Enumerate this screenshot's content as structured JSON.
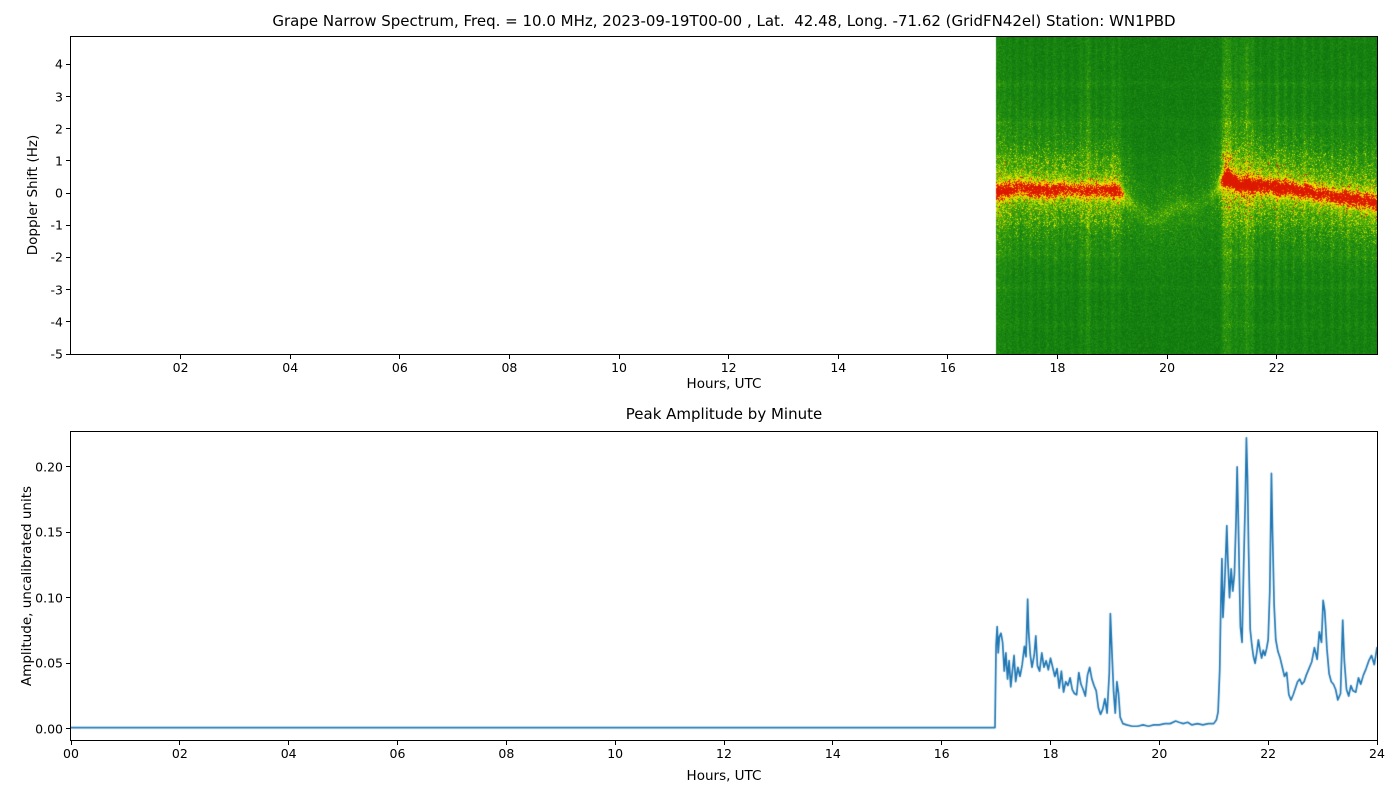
{
  "figure": {
    "background": "#ffffff",
    "text_color": "#000000"
  },
  "chart_data": [
    {
      "id": "doppler_spectrogram",
      "type": "heatmap",
      "title": "Grape Narrow Spectrum, Freq. = 10.0 MHz, 2023-09-19T00-00 , Lat.  42.48, Long. -71.62 (GridFN42el) Station: WN1PBD",
      "xlabel": "Hours, UTC",
      "ylabel": "Doppler Shift (Hz)",
      "xlim": [
        0,
        23.83
      ],
      "ylim": [
        -5,
        4.85
      ],
      "xticks": {
        "values": [
          2,
          4,
          6,
          8,
          10,
          12,
          14,
          16,
          18,
          20,
          22
        ],
        "labels": [
          "02",
          "04",
          "06",
          "08",
          "10",
          "12",
          "14",
          "16",
          "18",
          "20",
          "22"
        ]
      },
      "yticks": {
        "values": [
          4,
          3,
          2,
          1,
          0,
          -1,
          -2,
          -3,
          -4,
          -5
        ],
        "labels": [
          "4",
          "3",
          "2",
          "1",
          "0",
          "-1",
          "-2",
          "-3",
          "-4",
          "-5"
        ]
      },
      "grid": false,
      "no_data_color": "#ffffff",
      "data_start_hour": 16.87,
      "data_end_hour": 23.83,
      "noise_seed": 7,
      "colormap_stops": [
        [
          0.0,
          10,
          105,
          10
        ],
        [
          0.16,
          24,
          134,
          18
        ],
        [
          0.34,
          60,
          160,
          12
        ],
        [
          0.5,
          130,
          196,
          4
        ],
        [
          0.64,
          200,
          224,
          0
        ],
        [
          0.75,
          240,
          240,
          0
        ],
        [
          0.85,
          250,
          190,
          0
        ],
        [
          0.92,
          247,
          110,
          0
        ],
        [
          1.0,
          220,
          25,
          0
        ]
      ],
      "trace_center_hz": [
        [
          16.88,
          0.05,
          0.85
        ],
        [
          17.0,
          0.08,
          0.8
        ],
        [
          17.15,
          0.12,
          0.8
        ],
        [
          17.3,
          0.22,
          0.75
        ],
        [
          17.45,
          0.15,
          0.8
        ],
        [
          17.6,
          0.1,
          0.85
        ],
        [
          17.75,
          0.12,
          0.8
        ],
        [
          17.9,
          0.08,
          0.8
        ],
        [
          18.05,
          0.15,
          0.75
        ],
        [
          18.2,
          0.12,
          0.7
        ],
        [
          18.35,
          0.1,
          0.7
        ],
        [
          18.5,
          0.08,
          0.72
        ],
        [
          18.65,
          0.1,
          0.7
        ],
        [
          18.8,
          0.08,
          0.75
        ],
        [
          18.95,
          0.12,
          0.8
        ],
        [
          19.05,
          0.1,
          0.85
        ],
        [
          19.15,
          0.02,
          0.6
        ],
        [
          19.25,
          -0.15,
          0.3
        ],
        [
          19.4,
          -0.4,
          0.16
        ],
        [
          19.55,
          -0.65,
          0.13
        ],
        [
          19.7,
          -0.8,
          0.12
        ],
        [
          19.85,
          -0.7,
          0.14
        ],
        [
          20.0,
          -0.55,
          0.16
        ],
        [
          20.15,
          -0.45,
          0.15
        ],
        [
          20.3,
          -0.35,
          0.14
        ],
        [
          20.45,
          -0.5,
          0.12
        ],
        [
          20.6,
          -0.35,
          0.1
        ],
        [
          20.75,
          -0.15,
          0.1
        ],
        [
          20.9,
          0.15,
          0.25
        ],
        [
          21.0,
          0.4,
          0.6
        ],
        [
          21.08,
          0.5,
          1.0
        ],
        [
          21.15,
          0.42,
          1.0
        ],
        [
          21.25,
          0.32,
          0.95
        ],
        [
          21.35,
          0.25,
          0.9
        ],
        [
          21.45,
          0.3,
          0.92
        ],
        [
          21.55,
          0.22,
          0.95
        ],
        [
          21.65,
          0.27,
          0.9
        ],
        [
          21.75,
          0.2,
          0.85
        ],
        [
          21.85,
          0.24,
          0.85
        ],
        [
          21.95,
          0.2,
          0.88
        ],
        [
          22.05,
          0.14,
          0.95
        ],
        [
          22.15,
          0.2,
          0.9
        ],
        [
          22.25,
          0.16,
          0.85
        ],
        [
          22.35,
          0.1,
          0.85
        ],
        [
          22.45,
          0.06,
          0.85
        ],
        [
          22.55,
          0.1,
          0.82
        ],
        [
          22.65,
          0.02,
          0.8
        ],
        [
          22.75,
          -0.04,
          0.8
        ],
        [
          22.85,
          0.0,
          0.8
        ],
        [
          22.95,
          -0.06,
          0.8
        ],
        [
          23.05,
          -0.1,
          0.8
        ],
        [
          23.15,
          -0.16,
          0.8
        ],
        [
          23.25,
          -0.1,
          0.82
        ],
        [
          23.35,
          -0.2,
          0.85
        ],
        [
          23.45,
          -0.15,
          0.8
        ],
        [
          23.55,
          -0.25,
          0.8
        ],
        [
          23.65,
          -0.2,
          0.85
        ],
        [
          23.75,
          -0.28,
          0.88
        ],
        [
          23.83,
          -0.32,
          0.9
        ]
      ],
      "vertical_streaks": [
        [
          16.92,
          0.45,
          0.05
        ],
        [
          17.02,
          0.35,
          0.04
        ],
        [
          17.12,
          0.3,
          0.04
        ],
        [
          17.25,
          0.28,
          0.04
        ],
        [
          17.38,
          0.25,
          0.03
        ],
        [
          17.5,
          0.3,
          0.04
        ],
        [
          17.65,
          0.22,
          0.03
        ],
        [
          17.8,
          0.28,
          0.04
        ],
        [
          17.95,
          0.3,
          0.04
        ],
        [
          18.1,
          0.25,
          0.03
        ],
        [
          18.25,
          0.22,
          0.03
        ],
        [
          18.42,
          0.3,
          0.04
        ],
        [
          18.55,
          0.55,
          0.05
        ],
        [
          18.7,
          0.25,
          0.03
        ],
        [
          18.85,
          0.22,
          0.03
        ],
        [
          19.0,
          0.32,
          0.04
        ],
        [
          19.12,
          0.3,
          0.03
        ],
        [
          19.3,
          0.12,
          0.03
        ],
        [
          19.6,
          0.08,
          0.03
        ],
        [
          19.9,
          0.1,
          0.03
        ],
        [
          20.2,
          0.08,
          0.03
        ],
        [
          20.5,
          0.1,
          0.03
        ],
        [
          20.8,
          0.1,
          0.03
        ],
        [
          21.02,
          0.45,
          0.04
        ],
        [
          21.08,
          0.65,
          0.05
        ],
        [
          21.15,
          0.55,
          0.04
        ],
        [
          21.25,
          0.45,
          0.04
        ],
        [
          21.35,
          0.38,
          0.04
        ],
        [
          21.45,
          0.75,
          0.05
        ],
        [
          21.55,
          0.45,
          0.04
        ],
        [
          21.7,
          0.3,
          0.03
        ],
        [
          21.85,
          0.25,
          0.03
        ],
        [
          22.0,
          0.4,
          0.04
        ],
        [
          22.15,
          0.3,
          0.03
        ],
        [
          22.3,
          0.28,
          0.03
        ],
        [
          22.5,
          0.35,
          0.04
        ],
        [
          22.65,
          0.25,
          0.03
        ],
        [
          22.8,
          0.22,
          0.03
        ],
        [
          23.0,
          0.3,
          0.03
        ],
        [
          23.15,
          0.25,
          0.03
        ],
        [
          23.3,
          0.3,
          0.04
        ],
        [
          23.45,
          0.28,
          0.03
        ],
        [
          23.6,
          0.3,
          0.03
        ],
        [
          23.75,
          0.25,
          0.03
        ]
      ],
      "horizontal_bands_hz": [
        [
          3.4,
          0.1
        ],
        [
          2.2,
          0.08
        ],
        [
          1.1,
          0.07
        ],
        [
          -0.9,
          0.07
        ],
        [
          -1.9,
          0.08
        ],
        [
          -2.9,
          0.07
        ],
        [
          -4.1,
          0.05
        ]
      ]
    },
    {
      "id": "peak_amplitude",
      "type": "line",
      "title": "Peak Amplitude by Minute",
      "xlabel": "Hours, UTC",
      "ylabel": "Amplitude, uncalibrated units",
      "xlim": [
        0,
        24
      ],
      "ylim": [
        -0.0085,
        0.2265
      ],
      "xticks": {
        "values": [
          0,
          2,
          4,
          6,
          8,
          10,
          12,
          14,
          16,
          18,
          20,
          22,
          24
        ],
        "labels": [
          "00",
          "02",
          "04",
          "06",
          "08",
          "10",
          "12",
          "14",
          "16",
          "18",
          "20",
          "22",
          "24"
        ]
      },
      "yticks": {
        "values": [
          0.0,
          0.05,
          0.1,
          0.15,
          0.2
        ],
        "labels": [
          "0.00",
          "0.05",
          "0.10",
          "0.15",
          "0.20"
        ]
      },
      "grid": false,
      "line_color": "#1f77b4",
      "line_width": 1.7,
      "points": [
        [
          0,
          0.001
        ],
        [
          16.98,
          0.001
        ],
        [
          17.0,
          0.064
        ],
        [
          17.02,
          0.078
        ],
        [
          17.04,
          0.058
        ],
        [
          17.06,
          0.07
        ],
        [
          17.09,
          0.073
        ],
        [
          17.12,
          0.066
        ],
        [
          17.15,
          0.044
        ],
        [
          17.18,
          0.058
        ],
        [
          17.21,
          0.038
        ],
        [
          17.24,
          0.052
        ],
        [
          17.27,
          0.032
        ],
        [
          17.3,
          0.044
        ],
        [
          17.33,
          0.056
        ],
        [
          17.36,
          0.036
        ],
        [
          17.4,
          0.047
        ],
        [
          17.44,
          0.04
        ],
        [
          17.48,
          0.049
        ],
        [
          17.52,
          0.063
        ],
        [
          17.55,
          0.055
        ],
        [
          17.58,
          0.099
        ],
        [
          17.6,
          0.073
        ],
        [
          17.63,
          0.056
        ],
        [
          17.66,
          0.047
        ],
        [
          17.7,
          0.056
        ],
        [
          17.73,
          0.071
        ],
        [
          17.76,
          0.048
        ],
        [
          17.8,
          0.044
        ],
        [
          17.84,
          0.058
        ],
        [
          17.88,
          0.047
        ],
        [
          17.92,
          0.052
        ],
        [
          17.96,
          0.045
        ],
        [
          18.0,
          0.054
        ],
        [
          18.04,
          0.047
        ],
        [
          18.08,
          0.04
        ],
        [
          18.12,
          0.046
        ],
        [
          18.16,
          0.031
        ],
        [
          18.2,
          0.044
        ],
        [
          18.24,
          0.028
        ],
        [
          18.28,
          0.036
        ],
        [
          18.32,
          0.033
        ],
        [
          18.36,
          0.039
        ],
        [
          18.4,
          0.03
        ],
        [
          18.44,
          0.027
        ],
        [
          18.48,
          0.026
        ],
        [
          18.52,
          0.043
        ],
        [
          18.56,
          0.034
        ],
        [
          18.6,
          0.03
        ],
        [
          18.64,
          0.025
        ],
        [
          18.68,
          0.041
        ],
        [
          18.72,
          0.047
        ],
        [
          18.76,
          0.038
        ],
        [
          18.8,
          0.033
        ],
        [
          18.84,
          0.029
        ],
        [
          18.88,
          0.016
        ],
        [
          18.92,
          0.011
        ],
        [
          18.96,
          0.015
        ],
        [
          19.0,
          0.023
        ],
        [
          19.04,
          0.012
        ],
        [
          19.08,
          0.042
        ],
        [
          19.1,
          0.088
        ],
        [
          19.13,
          0.058
        ],
        [
          19.16,
          0.028
        ],
        [
          19.19,
          0.012
        ],
        [
          19.22,
          0.036
        ],
        [
          19.25,
          0.027
        ],
        [
          19.28,
          0.009
        ],
        [
          19.33,
          0.004
        ],
        [
          19.4,
          0.003
        ],
        [
          19.5,
          0.002
        ],
        [
          19.6,
          0.002
        ],
        [
          19.7,
          0.003
        ],
        [
          19.8,
          0.002
        ],
        [
          19.9,
          0.003
        ],
        [
          20.0,
          0.003
        ],
        [
          20.1,
          0.004
        ],
        [
          20.2,
          0.004
        ],
        [
          20.3,
          0.006
        ],
        [
          20.36,
          0.005
        ],
        [
          20.44,
          0.004
        ],
        [
          20.52,
          0.005
        ],
        [
          20.6,
          0.003
        ],
        [
          20.7,
          0.004
        ],
        [
          20.8,
          0.003
        ],
        [
          20.9,
          0.004
        ],
        [
          21.0,
          0.004
        ],
        [
          21.05,
          0.007
        ],
        [
          21.08,
          0.013
        ],
        [
          21.11,
          0.045
        ],
        [
          21.13,
          0.095
        ],
        [
          21.15,
          0.13
        ],
        [
          21.17,
          0.085
        ],
        [
          21.2,
          0.11
        ],
        [
          21.24,
          0.155
        ],
        [
          21.26,
          0.128
        ],
        [
          21.29,
          0.1
        ],
        [
          21.32,
          0.122
        ],
        [
          21.35,
          0.105
        ],
        [
          21.38,
          0.118
        ],
        [
          21.41,
          0.16
        ],
        [
          21.43,
          0.2
        ],
        [
          21.45,
          0.163
        ],
        [
          21.47,
          0.118
        ],
        [
          21.49,
          0.078
        ],
        [
          21.52,
          0.066
        ],
        [
          21.55,
          0.125
        ],
        [
          21.58,
          0.175
        ],
        [
          21.6,
          0.222
        ],
        [
          21.62,
          0.192
        ],
        [
          21.64,
          0.138
        ],
        [
          21.67,
          0.076
        ],
        [
          21.7,
          0.064
        ],
        [
          21.73,
          0.055
        ],
        [
          21.76,
          0.05
        ],
        [
          21.79,
          0.058
        ],
        [
          21.82,
          0.068
        ],
        [
          21.85,
          0.06
        ],
        [
          21.88,
          0.054
        ],
        [
          21.91,
          0.06
        ],
        [
          21.94,
          0.056
        ],
        [
          21.97,
          0.061
        ],
        [
          22.0,
          0.068
        ],
        [
          22.03,
          0.105
        ],
        [
          22.06,
          0.195
        ],
        [
          22.08,
          0.15
        ],
        [
          22.11,
          0.094
        ],
        [
          22.14,
          0.068
        ],
        [
          22.18,
          0.059
        ],
        [
          22.22,
          0.054
        ],
        [
          22.26,
          0.047
        ],
        [
          22.3,
          0.04
        ],
        [
          22.34,
          0.043
        ],
        [
          22.38,
          0.026
        ],
        [
          22.42,
          0.022
        ],
        [
          22.46,
          0.026
        ],
        [
          22.5,
          0.031
        ],
        [
          22.54,
          0.036
        ],
        [
          22.58,
          0.038
        ],
        [
          22.62,
          0.034
        ],
        [
          22.66,
          0.036
        ],
        [
          22.7,
          0.041
        ],
        [
          22.75,
          0.046
        ],
        [
          22.8,
          0.051
        ],
        [
          22.85,
          0.062
        ],
        [
          22.9,
          0.053
        ],
        [
          22.94,
          0.074
        ],
        [
          22.98,
          0.066
        ],
        [
          23.01,
          0.098
        ],
        [
          23.04,
          0.09
        ],
        [
          23.08,
          0.061
        ],
        [
          23.12,
          0.042
        ],
        [
          23.16,
          0.036
        ],
        [
          23.2,
          0.034
        ],
        [
          23.24,
          0.03
        ],
        [
          23.28,
          0.022
        ],
        [
          23.33,
          0.027
        ],
        [
          23.37,
          0.083
        ],
        [
          23.4,
          0.052
        ],
        [
          23.44,
          0.03
        ],
        [
          23.48,
          0.025
        ],
        [
          23.52,
          0.033
        ],
        [
          23.56,
          0.029
        ],
        [
          23.61,
          0.028
        ],
        [
          23.66,
          0.039
        ],
        [
          23.7,
          0.034
        ],
        [
          23.75,
          0.041
        ],
        [
          23.8,
          0.046
        ],
        [
          23.85,
          0.052
        ],
        [
          23.9,
          0.056
        ],
        [
          23.95,
          0.049
        ],
        [
          24.0,
          0.062
        ]
      ]
    }
  ]
}
